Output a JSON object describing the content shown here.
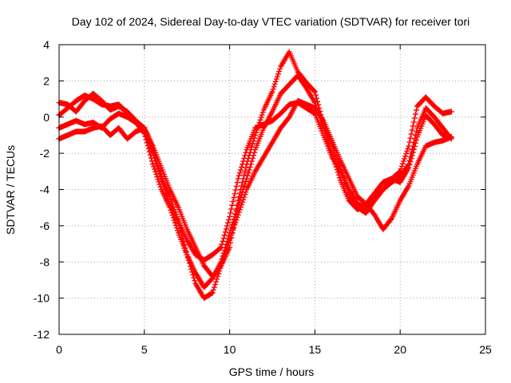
{
  "chart_data": {
    "type": "scatter",
    "title": "Day 102 of 2024, Sidereal Day-to-day VTEC variation (SDTVAR) for receiver tori",
    "xlabel": "GPS time / hours",
    "ylabel": "SDTVAR / TECUs",
    "xlim": [
      0,
      25
    ],
    "ylim": [
      -12,
      4
    ],
    "xticks": [
      "0",
      "5",
      "10",
      "15",
      "20",
      "25"
    ],
    "yticks": [
      "-12",
      "-10",
      "-8",
      "-6",
      "-4",
      "-2",
      "0",
      "2",
      "4"
    ],
    "grid": true,
    "marker": "+",
    "series_color": "#ff0000",
    "series": [
      {
        "x": [
          0,
          0.5,
          1,
          1.5,
          2,
          2.5,
          3,
          3.5,
          4,
          4.5,
          5,
          5.5,
          6,
          6.5,
          7,
          7.5,
          8,
          8.5,
          9,
          9.5,
          10,
          10.5,
          11,
          11.5,
          12,
          12.5,
          13,
          13.5,
          14,
          14.5,
          15,
          15.5,
          16,
          16.5,
          17,
          17.5,
          18,
          18.5,
          19,
          19.5,
          20,
          20.5,
          21,
          21.5,
          22,
          22.5,
          23
        ],
        "y": [
          0.8,
          0.7,
          0.3,
          0.9,
          1.3,
          0.9,
          0.4,
          0.6,
          0.3,
          -0.2,
          -0.6,
          -1.8,
          -3.3,
          -4.4,
          -5.8,
          -7.6,
          -9.2,
          -10.0,
          -9.7,
          -8.2,
          -7.2,
          -4.6,
          -2.6,
          -1.0,
          0.4,
          1.4,
          2.8,
          3.6,
          2.5,
          1.9,
          1.4,
          -0.4,
          -1.6,
          -2.8,
          -4.2,
          -5.0,
          -5.3,
          -4.6,
          -4.0,
          -3.4,
          -3.0,
          -1.6,
          0.6,
          1.1,
          0.6,
          0.2,
          0.3
        ]
      },
      {
        "x": [
          0,
          0.5,
          1,
          1.5,
          2,
          2.5,
          3,
          3.5,
          4,
          4.5,
          5,
          5.5,
          6,
          6.5,
          7,
          7.5,
          8,
          8.5,
          9,
          9.5,
          10,
          10.5,
          11,
          11.5,
          12,
          12.5,
          13,
          13.5,
          14,
          14.5,
          15,
          15.5,
          16,
          16.5,
          17,
          17.5,
          18,
          18.5,
          19,
          19.5,
          20,
          20.5,
          21,
          21.5,
          22,
          22.5,
          23
        ],
        "y": [
          0.1,
          0.5,
          0.9,
          1.2,
          1.0,
          0.7,
          0.6,
          0.7,
          0.2,
          -0.3,
          -0.9,
          -2.6,
          -4.0,
          -5.0,
          -6.4,
          -7.6,
          -8.6,
          -9.4,
          -8.9,
          -8.0,
          -6.4,
          -4.9,
          -3.4,
          -1.8,
          -0.6,
          0.3,
          1.3,
          1.8,
          2.3,
          1.6,
          0.8,
          -0.6,
          -2.0,
          -3.5,
          -4.6,
          -5.1,
          -4.8,
          -4.2,
          -3.6,
          -3.4,
          -3.6,
          -2.8,
          -1.1,
          0.1,
          -0.4,
          -1.0,
          -1.1
        ]
      },
      {
        "x": [
          0,
          0.5,
          1,
          1.5,
          2,
          2.5,
          3,
          3.5,
          4,
          4.5,
          5,
          5.5,
          6,
          6.5,
          7,
          7.5,
          8,
          8.5,
          9,
          9.5,
          10,
          10.5,
          11,
          11.5,
          12,
          12.5,
          13,
          13.5,
          14,
          14.5,
          15,
          15.5,
          16,
          16.5,
          17,
          17.5,
          18,
          18.5,
          19,
          19.5,
          20,
          20.5,
          21,
          21.5,
          22,
          22.5,
          23
        ],
        "y": [
          -0.6,
          -0.4,
          -0.2,
          -0.4,
          -0.3,
          -0.6,
          -0.1,
          0.2,
          0.0,
          -0.3,
          -0.7,
          -2.0,
          -3.4,
          -4.8,
          -5.8,
          -6.8,
          -7.6,
          -7.9,
          -7.6,
          -7.2,
          -5.5,
          -3.4,
          -1.8,
          -0.6,
          -0.4,
          -0.2,
          0.2,
          0.7,
          0.8,
          0.5,
          0.2,
          -1.0,
          -2.2,
          -3.0,
          -4.0,
          -4.8,
          -5.0,
          -4.5,
          -4.0,
          -3.6,
          -3.3,
          -2.6,
          -0.6,
          0.5,
          0.0,
          -0.6,
          -1.2
        ]
      },
      {
        "x": [
          0,
          0.5,
          1,
          1.5,
          2,
          2.5,
          3,
          3.5,
          4,
          4.5,
          5,
          5.5,
          6,
          6.5,
          7,
          7.5,
          8,
          8.5,
          9,
          9.5,
          10,
          10.5,
          11,
          11.5,
          12,
          12.5,
          13,
          13.5,
          14,
          14.5,
          15,
          15.5,
          16,
          16.5,
          17,
          17.5,
          18,
          18.5,
          19,
          19.5,
          20,
          20.5,
          21,
          21.5,
          22,
          22.5,
          23
        ],
        "y": [
          -1.2,
          -1.0,
          -0.8,
          -0.8,
          -0.6,
          -0.5,
          -1.0,
          -0.6,
          -1.2,
          -0.8,
          -0.6,
          -1.6,
          -2.8,
          -4.0,
          -5.0,
          -6.2,
          -7.2,
          -8.2,
          -8.8,
          -8.2,
          -6.8,
          -5.4,
          -4.0,
          -3.0,
          -2.2,
          -1.4,
          -0.6,
          0.0,
          0.9,
          0.7,
          0.5,
          -0.2,
          -1.3,
          -2.4,
          -3.4,
          -4.4,
          -4.8,
          -5.4,
          -6.2,
          -5.6,
          -4.6,
          -3.8,
          -2.6,
          -1.6,
          -1.4,
          -1.3,
          -1.1
        ]
      }
    ]
  }
}
